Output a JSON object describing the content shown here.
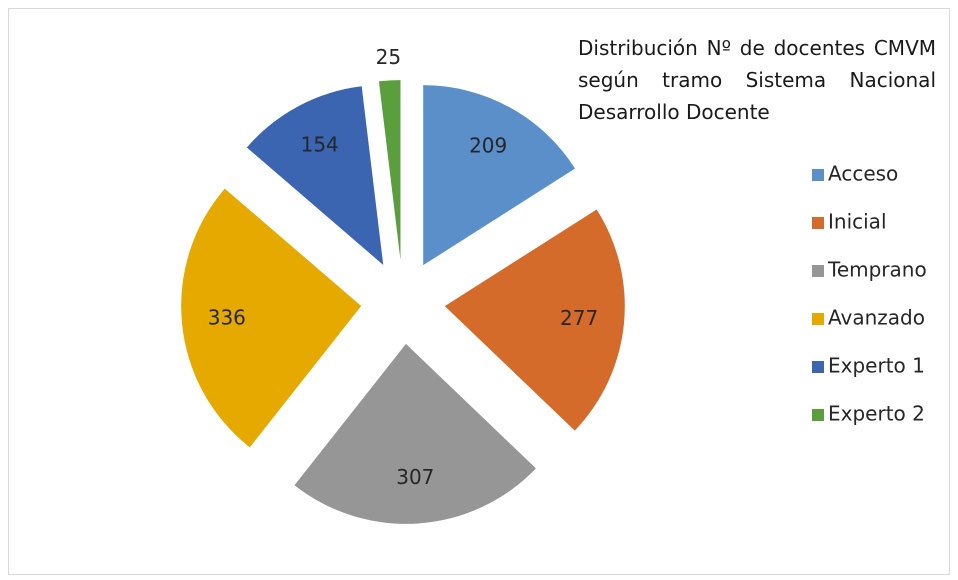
{
  "chart_data": {
    "type": "pie",
    "title": "Distribución Nº de docentes CMVM según tramo Sistema Nacional Desarrollo Docente",
    "categories": [
      "Acceso",
      "Inicial",
      "Temprano",
      "Avanzado",
      "Experto 1",
      "Experto 2"
    ],
    "values": [
      209,
      277,
      307,
      336,
      154,
      25
    ],
    "colors": [
      "#5a8fca",
      "#d56b2b",
      "#969696",
      "#e5a900",
      "#3b64b1",
      "#5b9e3d"
    ],
    "legend": "right"
  }
}
